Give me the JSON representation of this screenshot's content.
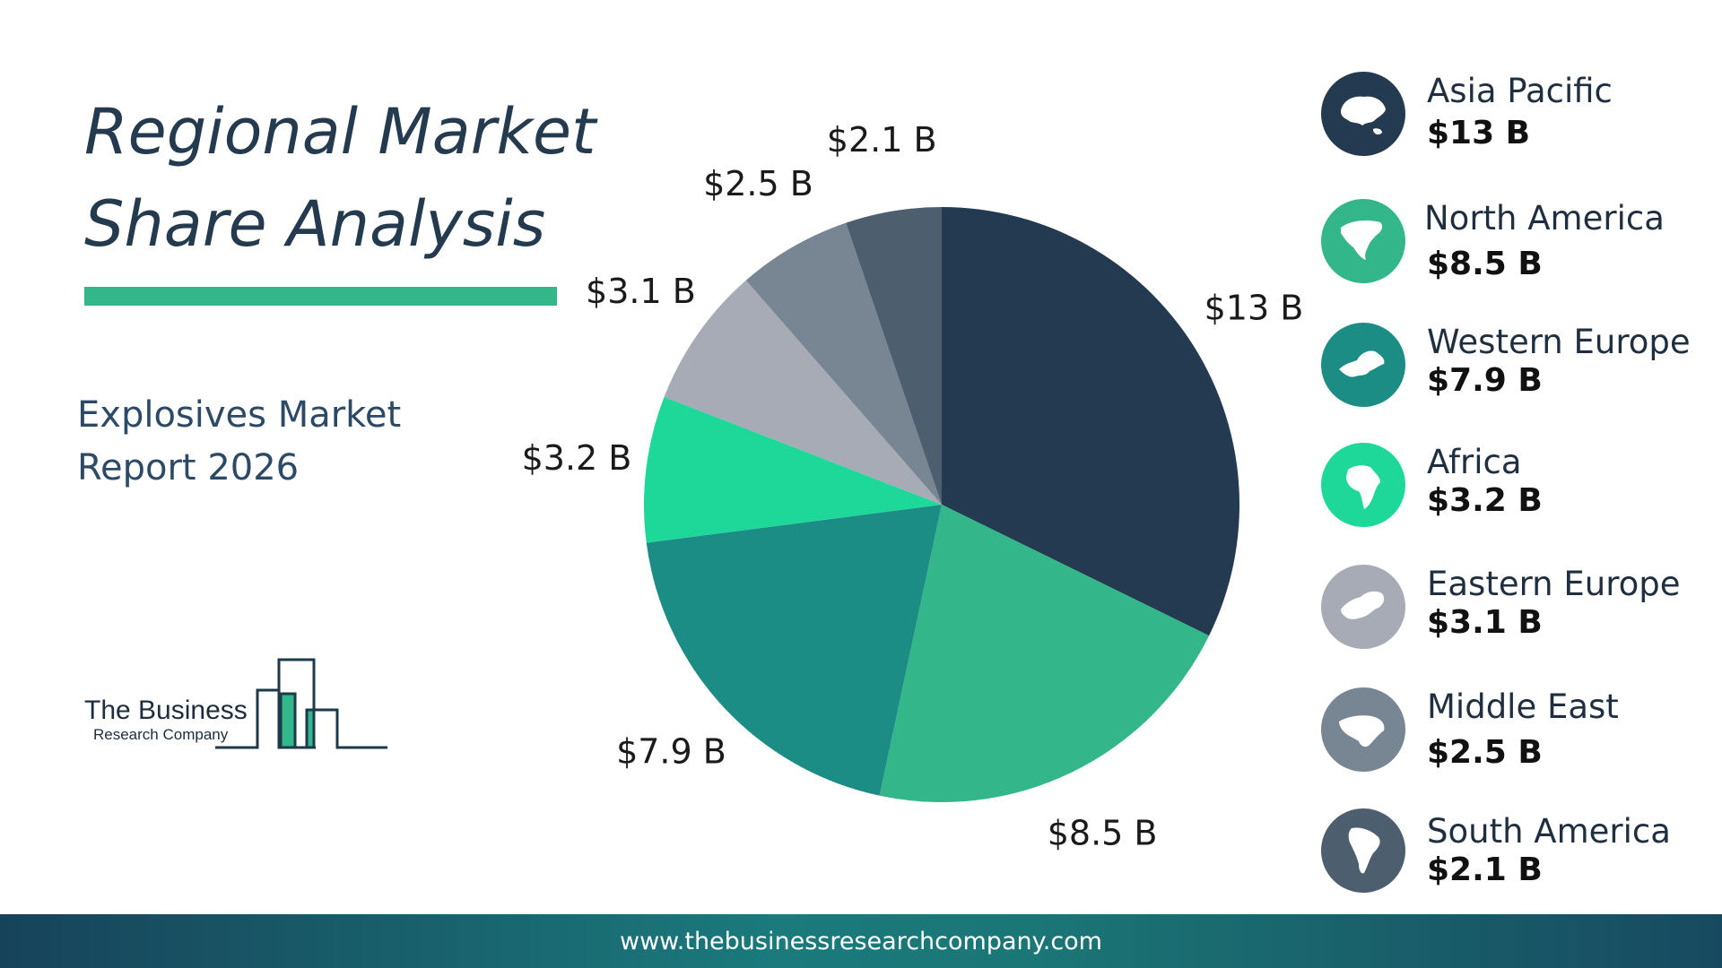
{
  "title": {
    "line1": "Regional Market",
    "line2": "Share Analysis"
  },
  "subtitle": {
    "line1": "Explosives Market",
    "line2": "Report 2026"
  },
  "logo": {
    "name": "The Business",
    "sub": "Research Company"
  },
  "footer": {
    "url": "www.thebusinessresearchcompany.com"
  },
  "colors": {
    "asia_pacific": "#243a50",
    "north_america": "#33b78a",
    "western_europe": "#1c8d85",
    "africa": "#1ed89a",
    "eastern_europe": "#a6abb6",
    "middle_east": "#788593",
    "south_america": "#4d5e6f",
    "accent": "#33b78a"
  },
  "chart_data": {
    "type": "pie",
    "categories": [
      "Asia Pacific",
      "North America",
      "Western Europe",
      "Africa",
      "Eastern Europe",
      "Middle East",
      "South America"
    ],
    "values": [
      13,
      8.5,
      7.9,
      3.2,
      3.1,
      2.5,
      2.1
    ],
    "data_labels": [
      "$13 B",
      "$8.5 B",
      "$7.9 B",
      "$3.2 B",
      "$3.1 B",
      "$2.5 B",
      "$2.1 B"
    ],
    "start_angle_deg": 0,
    "direction": "clockwise",
    "legend_placement": "right"
  },
  "legend": [
    {
      "name": "Asia Pacific",
      "value": "$13 B",
      "icon": "asia-map-icon",
      "color": "#243a50"
    },
    {
      "name": "North America",
      "value": "$8.5 B",
      "icon": "north-america-map-icon",
      "color": "#33b78a"
    },
    {
      "name": "Western Europe",
      "value": "$7.9 B",
      "icon": "western-europe-map-icon",
      "color": "#1c8d85"
    },
    {
      "name": "Africa",
      "value": "$3.2 B",
      "icon": "africa-map-icon",
      "color": "#1ed89a"
    },
    {
      "name": "Eastern Europe",
      "value": "$3.1 B",
      "icon": "eastern-europe-map-icon",
      "color": "#a6abb6"
    },
    {
      "name": "Middle East",
      "value": "$2.5 B",
      "icon": "middle-east-map-icon",
      "color": "#788593"
    },
    {
      "name": "South America",
      "value": "$2.1 B",
      "icon": "south-america-map-icon",
      "color": "#4d5e6f"
    }
  ]
}
